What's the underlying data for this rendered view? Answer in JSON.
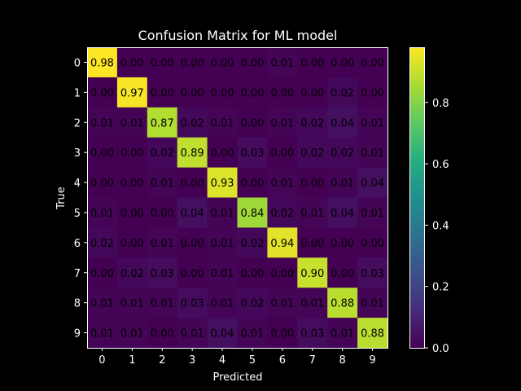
{
  "chart_data": {
    "type": "heatmap",
    "title": "Confusion Matrix for ML model",
    "xlabel": "Predicted",
    "ylabel": "True",
    "x_categories": [
      "0",
      "1",
      "2",
      "3",
      "4",
      "5",
      "6",
      "7",
      "8",
      "9"
    ],
    "y_categories": [
      "0",
      "1",
      "2",
      "3",
      "4",
      "5",
      "6",
      "7",
      "8",
      "9"
    ],
    "values": [
      [
        0.98,
        0.0,
        0.0,
        0.0,
        0.0,
        0.0,
        0.01,
        0.0,
        0.0,
        0.0
      ],
      [
        0.0,
        0.97,
        0.0,
        0.0,
        0.0,
        0.0,
        0.0,
        0.0,
        0.02,
        0.0
      ],
      [
        0.01,
        0.01,
        0.87,
        0.02,
        0.01,
        0.0,
        0.01,
        0.02,
        0.04,
        0.01
      ],
      [
        0.0,
        0.0,
        0.02,
        0.89,
        0.0,
        0.03,
        0.0,
        0.02,
        0.02,
        0.01
      ],
      [
        0.0,
        0.0,
        0.01,
        0.0,
        0.93,
        0.0,
        0.01,
        0.0,
        0.01,
        0.04
      ],
      [
        0.01,
        0.0,
        0.0,
        0.04,
        0.01,
        0.84,
        0.02,
        0.01,
        0.04,
        0.01
      ],
      [
        0.02,
        0.0,
        0.01,
        0.0,
        0.01,
        0.02,
        0.94,
        0.0,
        0.0,
        0.0
      ],
      [
        0.0,
        0.02,
        0.03,
        0.0,
        0.01,
        0.0,
        0.0,
        0.9,
        0.0,
        0.03
      ],
      [
        0.01,
        0.01,
        0.01,
        0.03,
        0.01,
        0.02,
        0.01,
        0.01,
        0.88,
        0.01
      ],
      [
        0.01,
        0.01,
        0.0,
        0.01,
        0.04,
        0.01,
        0.0,
        0.03,
        0.01,
        0.88
      ]
    ],
    "colormap": "viridis",
    "vmin": 0.0,
    "vmax": 0.98,
    "colorbar_ticks": [
      "0.0",
      "0.2",
      "0.4",
      "0.6",
      "0.8"
    ],
    "colorbar_tick_values": [
      0.0,
      0.2,
      0.4,
      0.6,
      0.8
    ],
    "background_color": "#000000",
    "text_color": "#ffffff",
    "cell_label_color": "#000000"
  }
}
